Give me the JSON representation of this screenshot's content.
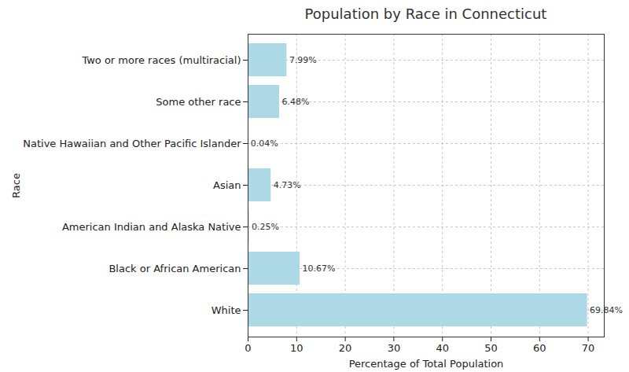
{
  "chart_data": {
    "type": "bar",
    "title": "Population by Race in Connecticut",
    "x_label": "Percentage of Total Population",
    "y_label": "Race",
    "orientation": "horizontal",
    "categories": [
      "Two or more races (multiracial)",
      "Some other race",
      "Native Hawaiian and Other Pacific Islander",
      "Asian",
      "American Indian and Alaska Native",
      "Black or African American",
      "White"
    ],
    "values": [
      7.99,
      6.48,
      0.04,
      4.73,
      0.25,
      10.67,
      69.84
    ],
    "value_labels": [
      "7.99%",
      "6.48%",
      "0.04%",
      "4.73%",
      "0.25%",
      "10.67%",
      "69.84%"
    ],
    "data_labels": true,
    "color": "#add8e6",
    "xlim": [
      0,
      73.3
    ],
    "xticks": [
      0,
      10,
      20,
      30,
      40,
      50,
      60,
      70
    ],
    "grid": true
  }
}
